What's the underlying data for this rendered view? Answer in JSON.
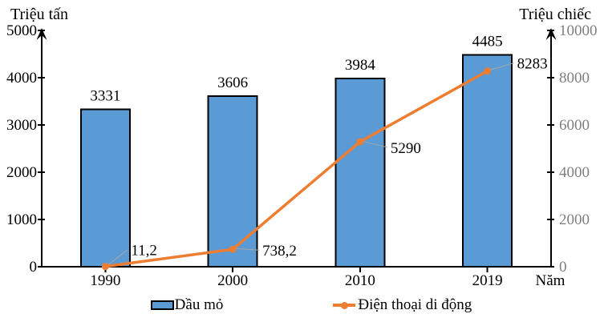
{
  "chart_data": {
    "type": "combo",
    "categories": [
      "1990",
      "2000",
      "2010",
      "2019"
    ],
    "series": [
      {
        "name": "Dầu mỏ",
        "type": "bar",
        "axis": "left",
        "values": [
          3331,
          3606,
          3984,
          4485
        ],
        "labels": [
          "3331",
          "3606",
          "3984",
          "4485"
        ],
        "fill": "#5B9BD5",
        "stroke": "#000000"
      },
      {
        "name": "Điện thoại di động",
        "type": "line",
        "axis": "right",
        "values": [
          11.2,
          738.2,
          5290,
          8283
        ],
        "labels": [
          "11,2",
          "738,2",
          "5290",
          "8283"
        ],
        "color": "#ED7D31"
      }
    ],
    "left_axis": {
      "title": "Triệu tấn",
      "min": 0,
      "max": 5000,
      "step": 1000,
      "ticks": [
        "0",
        "1000",
        "2000",
        "3000",
        "4000",
        "5000"
      ],
      "tick_color": "#000000"
    },
    "right_axis": {
      "title": "Triệu chiếc",
      "min": 0,
      "max": 10000,
      "step": 2000,
      "ticks": [
        "0",
        "2000",
        "4000",
        "6000",
        "8000",
        "10000"
      ],
      "tick_color": "#7F7F7F"
    },
    "x_axis": {
      "title": "Năm",
      "tick_color": "#000000"
    },
    "leader_color": "#A6A6A6",
    "axis_color": "#000000",
    "grid": false,
    "legend_position": "bottom"
  }
}
